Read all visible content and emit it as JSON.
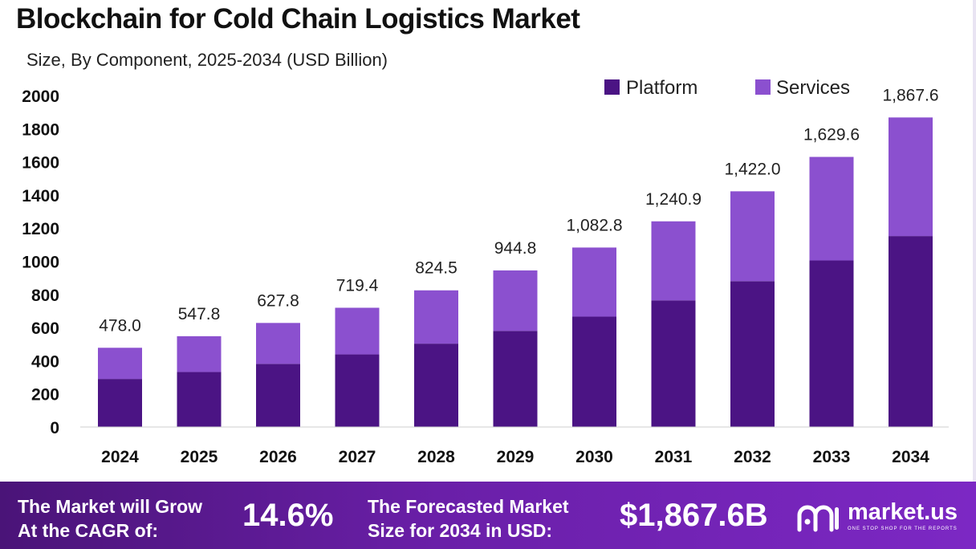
{
  "title": "Blockchain for Cold Chain Logistics Market",
  "subtitle": "Size, By Component, 2025-2034 (USD Billion)",
  "colors": {
    "platform": "#4b1484",
    "services": "#8b50cf",
    "footer_start": "#4a1478",
    "footer_end": "#7c28c4"
  },
  "chart_data": {
    "type": "bar",
    "stacked": true,
    "categories": [
      "2024",
      "2025",
      "2026",
      "2027",
      "2028",
      "2029",
      "2030",
      "2031",
      "2032",
      "2033",
      "2034"
    ],
    "series": [
      {
        "name": "Platform",
        "values": [
          290,
          332,
          381,
          438,
          503,
          580,
          666,
          764,
          880,
          1005,
          1152
        ]
      },
      {
        "name": "Services",
        "values": [
          188,
          215.8,
          246.8,
          281.4,
          321.5,
          364.8,
          416.8,
          476.9,
          542,
          624.6,
          715.6
        ]
      }
    ],
    "totals": [
      478.0,
      547.8,
      627.8,
      719.4,
      824.5,
      944.8,
      1082.8,
      1240.9,
      1422.0,
      1629.6,
      1867.6
    ],
    "total_labels": [
      "478.0",
      "547.8",
      "627.8",
      "719.4",
      "824.5",
      "944.8",
      "1,082.8",
      "1,240.9",
      "1,422.0",
      "1,629.6",
      "1,867.6"
    ],
    "yticks": [
      0,
      200,
      400,
      600,
      800,
      1000,
      1200,
      1400,
      1600,
      1800,
      2000
    ],
    "ylim": [
      0,
      2000
    ],
    "legend_position": "top-right",
    "xlabel": "",
    "ylabel": ""
  },
  "footer": {
    "cagr_line1": "The Market will Grow",
    "cagr_line2": "At the CAGR of:",
    "cagr_value": "14.6%",
    "forecast_line1": "The Forecasted Market",
    "forecast_line2": "Size for 2034 in USD:",
    "forecast_value": "$1,867.6B",
    "logo_text": "market.us",
    "logo_tagline": "ONE STOP SHOP FOR THE REPORTS"
  }
}
